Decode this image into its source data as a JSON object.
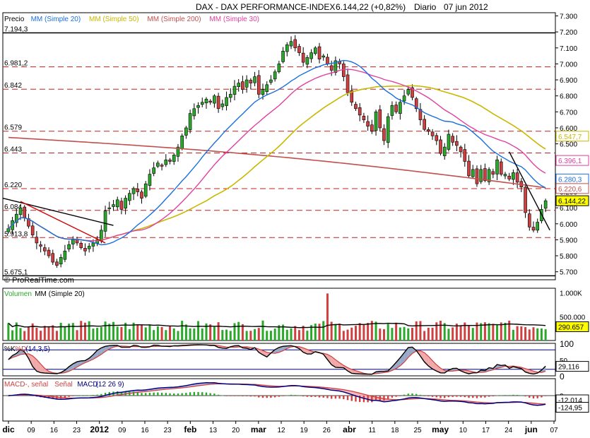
{
  "header": {
    "instrument": "DAX - DAX PERFORMANCE-INDEX",
    "last": "6.144,22 (+0,82%)",
    "period": "Diario",
    "date": "07 jun 2012"
  },
  "watermark": "© ProRealTime.com",
  "price_legend": [
    {
      "text": "Precio",
      "color": "#000000"
    },
    {
      "text": "MM (Simple 20)",
      "color": "#1a6fe0"
    },
    {
      "text": "MM (Simple 50)",
      "color": "#c9b800"
    },
    {
      "text": "MM (Simple 200)",
      "color": "#c0504d"
    },
    {
      "text": "MM (Simple 30)",
      "color": "#e040a0"
    }
  ],
  "volume_legend": [
    {
      "text": "Volumen",
      "color": "#2aa82a"
    },
    {
      "text": "MM (Simple 20)",
      "color": "#000000"
    }
  ],
  "stoch_legend": [
    {
      "text": "%K",
      "color": "#000000"
    },
    {
      "text": "%D",
      "color": "#d04040"
    },
    {
      "text": "(14,3,5)",
      "color": "#000080"
    }
  ],
  "macd_legend": [
    {
      "text": "MACD-, señal",
      "color": "#d04040"
    },
    {
      "text": "Señal",
      "color": "#d04040"
    },
    {
      "text": "MACD",
      "color": "#000080"
    },
    {
      "text": "(12 26 9)",
      "color": "#000080"
    }
  ],
  "chart_data": {
    "type": "candlestick",
    "title": "DAX - DAX PERFORMANCE-INDEX",
    "x_tick_labels": [
      "dic",
      "09",
      "16",
      "23",
      "2012",
      "09",
      "16",
      "23",
      "feb",
      "13",
      "20",
      "mar",
      "12",
      "19",
      "26",
      "abr",
      "11",
      "18",
      "25",
      "may",
      "10",
      "17",
      "24",
      "jun",
      "07"
    ],
    "price_axis": {
      "ylim": [
        5650,
        7320
      ],
      "ticks": [
        7300,
        7200,
        7100,
        7000,
        6900,
        6800,
        6700,
        6600,
        6500,
        6400,
        6300,
        6200,
        6100,
        6000,
        5900,
        5800,
        5700
      ],
      "tick_labels": [
        "7.300",
        "7.200",
        "7.100",
        "7.000",
        "6.900",
        "6.800",
        "6.700",
        "6.600",
        "6.500",
        "6.400",
        "6.300",
        "6.200",
        "6.100",
        "6.000",
        "5.900",
        "5.800",
        "5.700"
      ]
    },
    "horizontal_levels": [
      {
        "value": 7194.3,
        "label": "7.194,3",
        "style": "solid"
      },
      {
        "value": 6981.2,
        "label": "6.981,2",
        "style": "dashed"
      },
      {
        "value": 6842,
        "label": "6.842",
        "style": "dashed"
      },
      {
        "value": 6579,
        "label": "6.579",
        "style": "dashed"
      },
      {
        "value": 6443,
        "label": "6.443",
        "style": "dashed"
      },
      {
        "value": 6220,
        "label": "6.220",
        "style": "dashed"
      },
      {
        "value": 6084,
        "label": "6.084",
        "style": "dashed"
      },
      {
        "value": 5913.8,
        "label": "5.913,8",
        "style": "dashed"
      },
      {
        "value": 5675.1,
        "label": "5.675,1",
        "style": "solid"
      }
    ],
    "price_badges": [
      {
        "value": 6547.7,
        "label": "6.547,7",
        "color": "#c9b800"
      },
      {
        "value": 6396.1,
        "label": "6.396,1",
        "color": "#e040a0"
      },
      {
        "value": 6280.3,
        "label": "6.280,3",
        "color": "#1a6fe0"
      },
      {
        "value": 6220.6,
        "label": "6.220,6",
        "color": "#c0504d"
      },
      {
        "value": 6144.22,
        "label": "6.144,22",
        "color": "#000000",
        "fill": "#ffff00"
      }
    ],
    "closes": [
      5970,
      6020,
      6060,
      6100,
      6040,
      5985,
      5930,
      5880,
      5860,
      5830,
      5800,
      5760,
      5740,
      5790,
      5830,
      5870,
      5900,
      5880,
      5850,
      5830,
      5860,
      5880,
      5900,
      5960,
      6080,
      6100,
      6120,
      6150,
      6090,
      6160,
      6190,
      6220,
      6200,
      6160,
      6250,
      6310,
      6350,
      6380,
      6360,
      6400,
      6390,
      6430,
      6480,
      6550,
      6600,
      6690,
      6720,
      6740,
      6760,
      6780,
      6760,
      6800,
      6720,
      6750,
      6790,
      6810,
      6860,
      6880,
      6840,
      6900,
      6880,
      6920,
      6810,
      6840,
      6870,
      6900,
      6950,
      7000,
      7080,
      7120,
      7140,
      7100,
      7070,
      7010,
      7040,
      7070,
      7100,
      7030,
      7050,
      7000,
      6960,
      7020,
      7000,
      6920,
      6820,
      6760,
      6720,
      6680,
      6650,
      6610,
      6580,
      6700,
      6600,
      6520,
      6670,
      6740,
      6700,
      6760,
      6800,
      6840,
      6790,
      6720,
      6650,
      6590,
      6580,
      6550,
      6520,
      6440,
      6480,
      6560,
      6510,
      6490,
      6450,
      6390,
      6300,
      6340,
      6250,
      6340,
      6270,
      6340,
      6310,
      6400,
      6310,
      6310,
      6280,
      6320,
      6260,
      6230,
      6070,
      5980,
      5960,
      6010,
      6090,
      6144
    ],
    "volume_axis": {
      "ticks": [
        1000000,
        500000
      ],
      "tick_labels": [
        "1.000K",
        "500.000"
      ]
    },
    "volume_last": {
      "value": 290657,
      "label": "290.657"
    },
    "stoch_axis": {
      "ylim": [
        0,
        100
      ],
      "ticks": [
        100,
        50,
        0
      ],
      "tick_labels": [
        "100",
        "50",
        "0"
      ]
    },
    "stoch_last": {
      "value": 29.116,
      "label": "29,116"
    },
    "macd_axis": {
      "ticks": [
        0
      ],
      "tick_labels": [
        "0"
      ]
    },
    "macd_badges": [
      {
        "value": -12.014,
        "label": "-12,014"
      },
      {
        "value": -124.95,
        "label": "-124,95"
      }
    ]
  }
}
